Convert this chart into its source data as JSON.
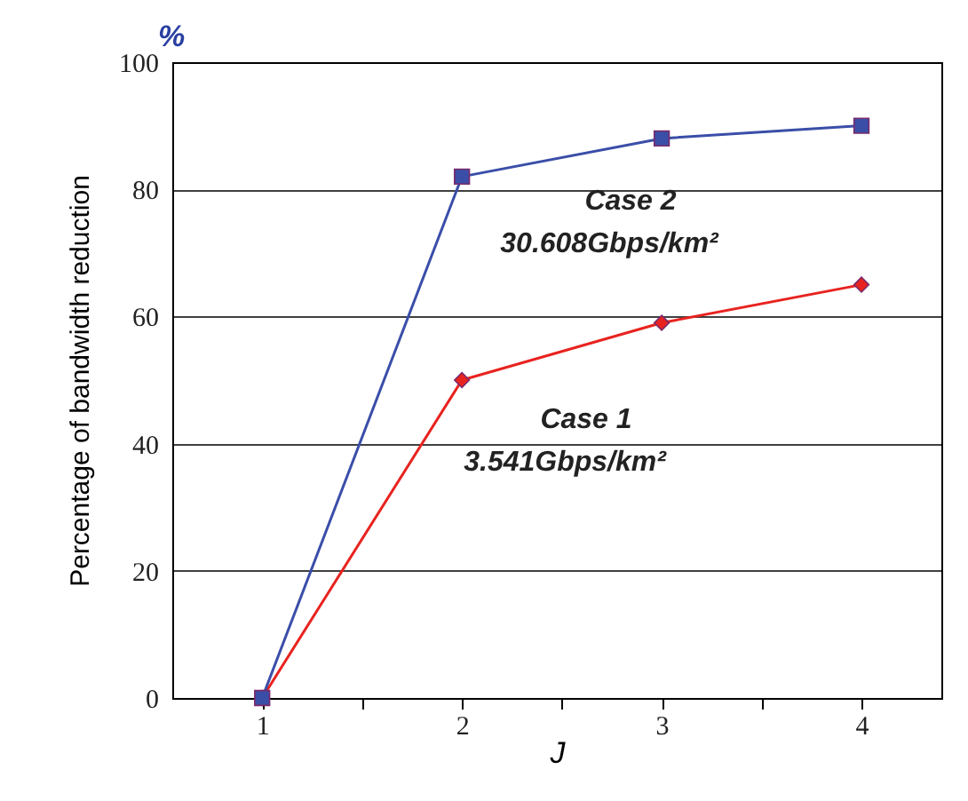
{
  "chart_data": {
    "type": "line",
    "xlabel": "J",
    "ylabel": "Percentage of bandwidth reduction",
    "x": [
      1,
      2,
      3,
      4
    ],
    "series": [
      {
        "name": "Case 1",
        "color": "#e8231f",
        "marker": "diamond",
        "values": [
          0,
          50,
          59,
          65
        ]
      },
      {
        "name": "Case 2",
        "color": "#3a4ea8",
        "marker": "square",
        "values": [
          0,
          82,
          88,
          90
        ]
      }
    ],
    "annotations": [
      "3.541Gbps/km²",
      "30.608Gbps/km²",
      "%"
    ],
    "xlim": [
      0.55,
      4.4
    ],
    "xticks": [
      1,
      {
        "value": 1.5,
        "label": null
      },
      2,
      {
        "value": 2.5,
        "label": null
      },
      3,
      {
        "value": 3.5,
        "label": null
      },
      4
    ],
    "ylim": [
      0,
      100
    ],
    "yticks": [
      0,
      20,
      40,
      60,
      80,
      100
    ],
    "grid": "y",
    "legend": false
  }
}
